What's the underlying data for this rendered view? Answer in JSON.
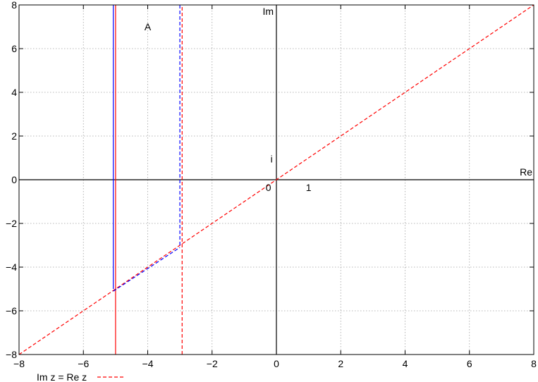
{
  "chart_data": {
    "type": "line",
    "xlim": [
      -8,
      8
    ],
    "ylim": [
      -8,
      8
    ],
    "grid": true,
    "x_ticks": [
      -8,
      -6,
      -4,
      -2,
      0,
      2,
      4,
      6,
      8
    ],
    "y_ticks": [
      -8,
      -6,
      -4,
      -2,
      0,
      2,
      4,
      6,
      8
    ],
    "x_tick_labels": [
      "−8",
      "−6",
      "−4",
      "−2",
      "0",
      "2",
      "4",
      "6",
      "8"
    ],
    "y_tick_labels": [
      "−8",
      "−6",
      "−4",
      "−2",
      "0",
      "2",
      "4",
      "6",
      "8"
    ],
    "axis_labels": {
      "re": "Re",
      "im": "Im"
    },
    "annotations": [
      {
        "id": "label-a",
        "text": "A",
        "x": -4.0,
        "y": 7.0
      },
      {
        "id": "label-i",
        "text": "i",
        "x": -0.15,
        "y": 0.95
      },
      {
        "id": "label-zero",
        "text": "0",
        "x": -0.25,
        "y": -0.35
      },
      {
        "id": "label-one",
        "text": "1",
        "x": 1.0,
        "y": -0.35
      }
    ],
    "legend": {
      "position": "bottom-left",
      "entries": [
        {
          "label": "Im z = Re z",
          "color": "#ff0000",
          "style": "dashed"
        }
      ]
    },
    "series": [
      {
        "name": "Im z = Re z",
        "color": "#ff0000",
        "style": "dashed",
        "x": [
          -8,
          8
        ],
        "y": [
          -8,
          8
        ]
      },
      {
        "color": "#ff0000",
        "style": "solid",
        "x": [
          -5.0,
          -5.0
        ],
        "y": [
          -8,
          8
        ]
      },
      {
        "color": "#0000ff",
        "style": "solid",
        "x": [
          -5.07,
          -5.07
        ],
        "y": [
          -5.0,
          8
        ]
      },
      {
        "color": "#ff0000",
        "style": "dashed",
        "x": [
          -2.93,
          -2.93
        ],
        "y": [
          -8,
          8
        ]
      },
      {
        "color": "#0000ff",
        "style": "dashed",
        "x": [
          -3.0,
          -3.0
        ],
        "y": [
          -3.0,
          8
        ]
      },
      {
        "color": "#0000ff",
        "style": "dashed",
        "x": [
          -5.07,
          -3.0
        ],
        "y": [
          -5.1,
          -3.1
        ]
      }
    ]
  }
}
